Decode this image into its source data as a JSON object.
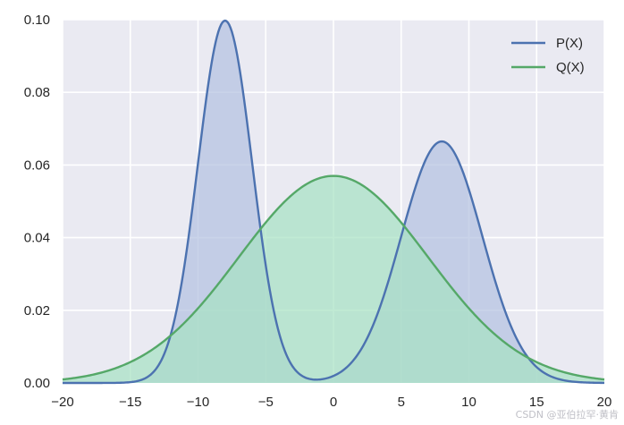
{
  "chart_data": {
    "type": "area",
    "title": "",
    "xlabel": "",
    "ylabel": "",
    "xlim": [
      -20,
      20
    ],
    "ylim": [
      0,
      0.1
    ],
    "x_ticks": [
      -20,
      -15,
      -10,
      -5,
      0,
      5,
      10,
      15,
      20
    ],
    "x_tick_labels": [
      "−20",
      "−15",
      "−10",
      "−5",
      "0",
      "5",
      "10",
      "15",
      "20"
    ],
    "y_ticks": [
      0,
      0.02,
      0.04,
      0.06,
      0.08,
      0.1
    ],
    "y_tick_labels": [
      "0.00",
      "0.02",
      "0.04",
      "0.06",
      "0.08",
      "0.10"
    ],
    "grid": true,
    "background": "#EAEAF2",
    "legend": {
      "position": "top-right",
      "entries": [
        "P(X)",
        "Q(X)"
      ]
    },
    "series": [
      {
        "name": "P(X)",
        "color": "#4C72B0",
        "fill": "#B4C2E0",
        "description": "mixture of two gaussians",
        "components": [
          {
            "weight": 0.5,
            "mean": -8,
            "std": 2
          },
          {
            "weight": 0.5,
            "mean": 8,
            "std": 3
          }
        ]
      },
      {
        "name": "Q(X)",
        "color": "#55A868",
        "fill": "#A8E2C4",
        "components": [
          {
            "weight": 1.0,
            "mean": 0,
            "std": 7
          }
        ]
      }
    ]
  },
  "watermark": "CSDN @亚伯拉罕·黄肯"
}
